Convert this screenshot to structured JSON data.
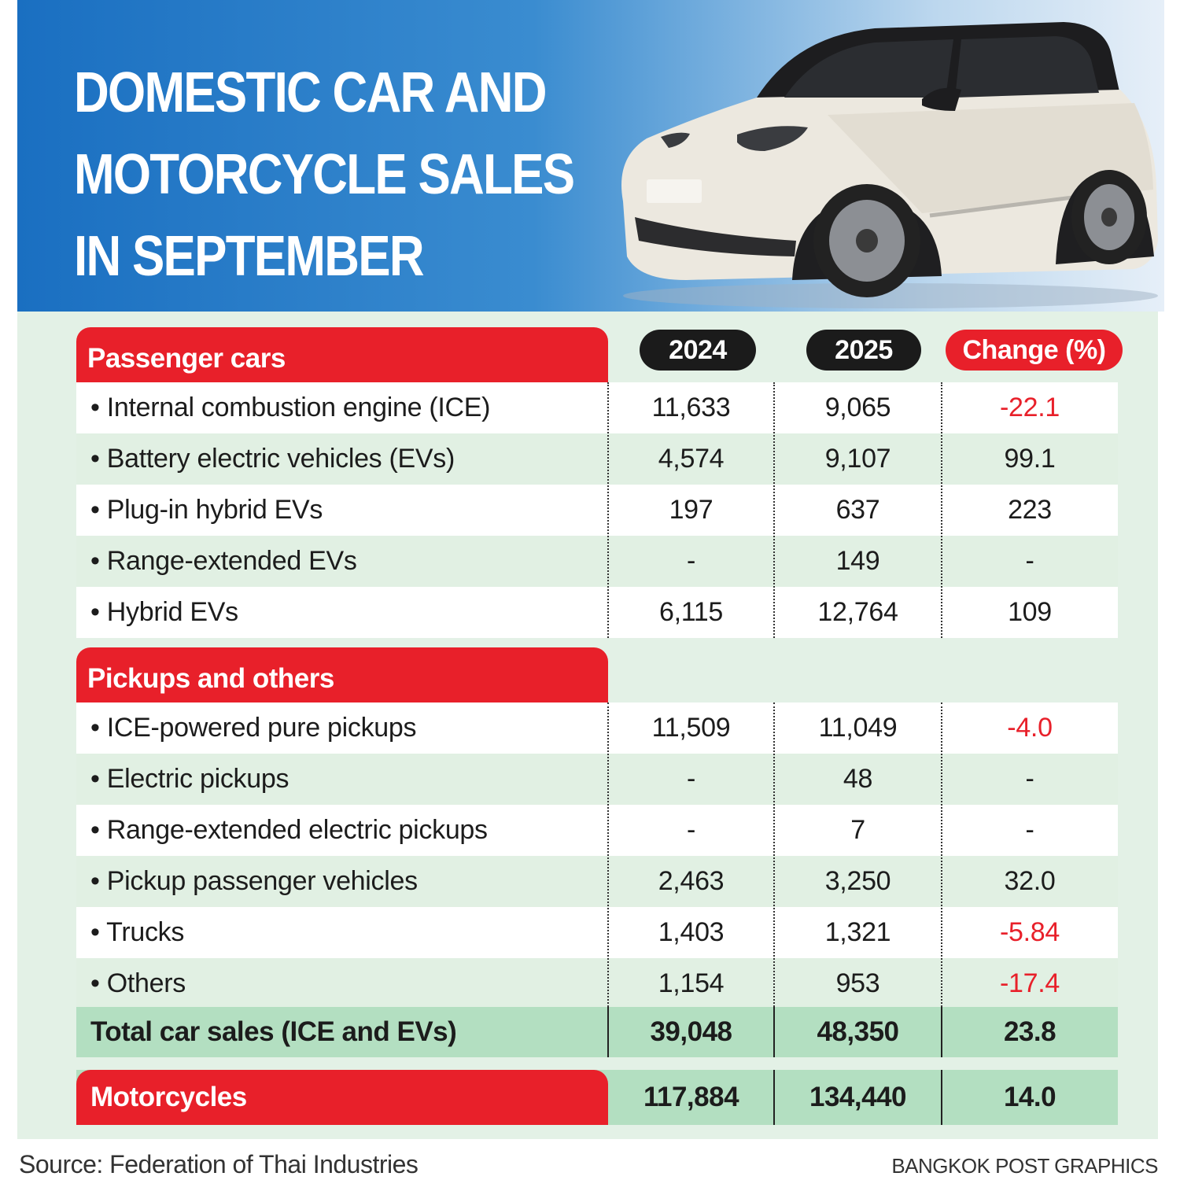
{
  "title_lines": [
    "DOMESTIC CAR AND",
    "MOTORCYCLE SALES",
    "IN SEPTEMBER"
  ],
  "columns": {
    "y2024": "2024",
    "y2025": "2025",
    "change": "Change (%)"
  },
  "sections": {
    "passenger": {
      "label": "Passenger cars",
      "rows": [
        {
          "label": "• Internal combustion engine (ICE)",
          "v2024": "11,633",
          "v2025": "9,065",
          "change": "-22.1"
        },
        {
          "label": "• Battery electric vehicles (EVs)",
          "v2024": "4,574",
          "v2025": "9,107",
          "change": "99.1"
        },
        {
          "label": "• Plug-in hybrid EVs",
          "v2024": "197",
          "v2025": "637",
          "change": "223"
        },
        {
          "label": "• Range-extended EVs",
          "v2024": "-",
          "v2025": "149",
          "change": "-"
        },
        {
          "label": "• Hybrid EVs",
          "v2024": "6,115",
          "v2025": "12,764",
          "change": "109"
        }
      ]
    },
    "pickups": {
      "label": "Pickups and others",
      "rows": [
        {
          "label": "• ICE-powered pure pickups",
          "v2024": "11,509",
          "v2025": "11,049",
          "change": "-4.0"
        },
        {
          "label": "• Electric pickups",
          "v2024": "-",
          "v2025": "48",
          "change": "-"
        },
        {
          "label": "• Range-extended electric pickups",
          "v2024": "-",
          "v2025": "7",
          "change": "-"
        },
        {
          "label": "• Pickup passenger vehicles",
          "v2024": "2,463",
          "v2025": "3,250",
          "change": "32.0"
        },
        {
          "label": "• Trucks",
          "v2024": "1,403",
          "v2025": "1,321",
          "change": "-5.84"
        },
        {
          "label": "• Others",
          "v2024": "1,154",
          "v2025": "953",
          "change": "-17.4"
        }
      ]
    }
  },
  "total": {
    "label": "Total car sales (ICE and EVs)",
    "v2024": "39,048",
    "v2025": "48,350",
    "change": "23.8"
  },
  "motorcycles": {
    "label": "Motorcycles",
    "v2024": "117,884",
    "v2025": "134,440",
    "change": "14.0"
  },
  "source": "Source: Federation of Thai Industries",
  "credit": "BANGKOK POST GRAPHICS",
  "colors": {
    "accent_red": "#e8202a",
    "header_blue": "#1a6fc1",
    "panel_green": "#e3f1e6",
    "total_green": "#b3dfc1"
  },
  "chart_data": {
    "type": "table",
    "title": "DOMESTIC CAR AND MOTORCYCLE SALES IN SEPTEMBER",
    "columns": [
      "2024",
      "2025",
      "Change (%)"
    ],
    "rows": [
      {
        "group": "Passenger cars",
        "name": "Internal combustion engine (ICE)",
        "2024": 11633,
        "2025": 9065,
        "change": -22.1
      },
      {
        "group": "Passenger cars",
        "name": "Battery electric vehicles (EVs)",
        "2024": 4574,
        "2025": 9107,
        "change": 99.1
      },
      {
        "group": "Passenger cars",
        "name": "Plug-in hybrid EVs",
        "2024": 197,
        "2025": 637,
        "change": 223
      },
      {
        "group": "Passenger cars",
        "name": "Range-extended EVs",
        "2024": null,
        "2025": 149,
        "change": null
      },
      {
        "group": "Passenger cars",
        "name": "Hybrid EVs",
        "2024": 6115,
        "2025": 12764,
        "change": 109
      },
      {
        "group": "Pickups and others",
        "name": "ICE-powered pure pickups",
        "2024": 11509,
        "2025": 11049,
        "change": -4.0
      },
      {
        "group": "Pickups and others",
        "name": "Electric pickups",
        "2024": null,
        "2025": 48,
        "change": null
      },
      {
        "group": "Pickups and others",
        "name": "Range-extended electric pickups",
        "2024": null,
        "2025": 7,
        "change": null
      },
      {
        "group": "Pickups and others",
        "name": "Pickup passenger vehicles",
        "2024": 2463,
        "2025": 3250,
        "change": 32.0
      },
      {
        "group": "Pickups and others",
        "name": "Trucks",
        "2024": 1403,
        "2025": 1321,
        "change": -5.84
      },
      {
        "group": "Pickups and others",
        "name": "Others",
        "2024": 1154,
        "2025": 953,
        "change": -17.4
      },
      {
        "group": "Total",
        "name": "Total car sales (ICE and EVs)",
        "2024": 39048,
        "2025": 48350,
        "change": 23.8
      },
      {
        "group": "Motorcycles",
        "name": "Motorcycles",
        "2024": 117884,
        "2025": 134440,
        "change": 14.0
      }
    ]
  }
}
